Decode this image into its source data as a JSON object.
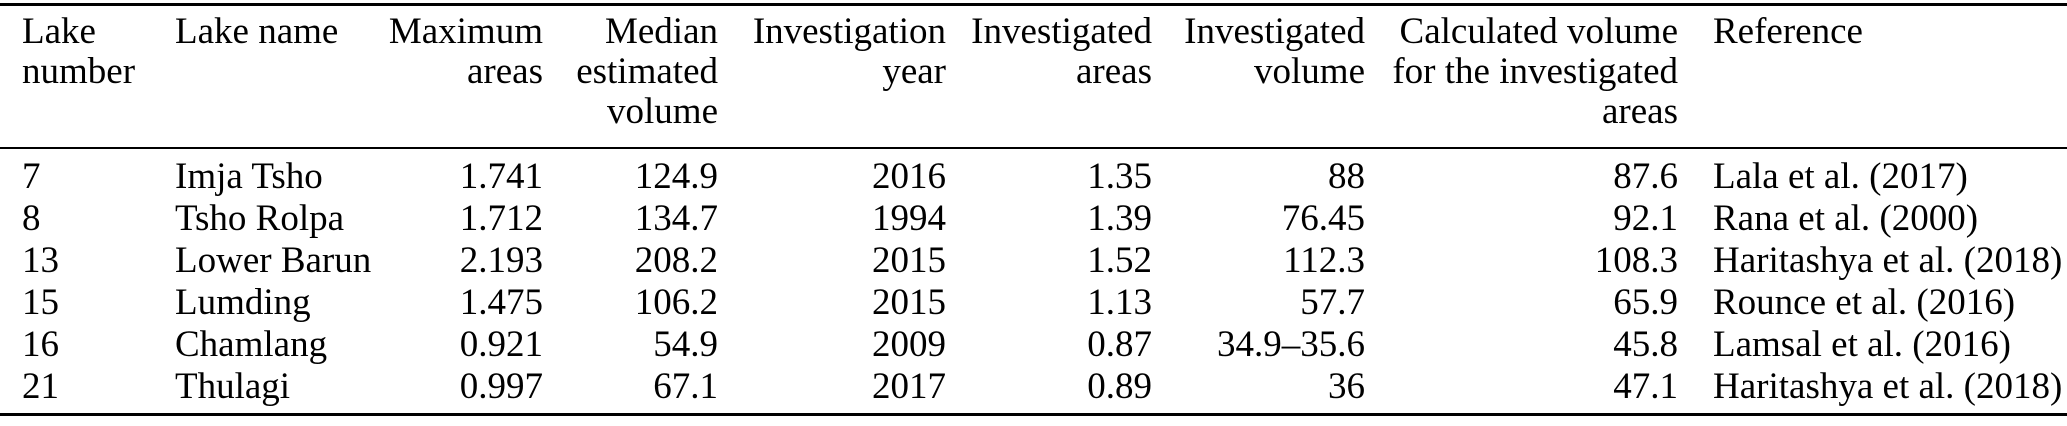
{
  "colors": {
    "text": "#000000",
    "rule": "#000000",
    "background": "#ffffff"
  },
  "table": {
    "columns": [
      {
        "label": "Lake\nnumber",
        "align": "left"
      },
      {
        "label": "Lake name",
        "align": "left"
      },
      {
        "label": "Maximum\nareas",
        "align": "right"
      },
      {
        "label": "Median\nestimated\nvolume",
        "align": "right"
      },
      {
        "label": "Investigation\nyear",
        "align": "right"
      },
      {
        "label": "Investigated\nareas",
        "align": "right"
      },
      {
        "label": "Investigated\nvolume",
        "align": "right"
      },
      {
        "label": "Calculated volume\nfor the investigated\nareas",
        "align": "right"
      },
      {
        "label": "Reference",
        "align": "left"
      }
    ],
    "rows": [
      [
        "7",
        "Imja Tsho",
        "1.741",
        "124.9",
        "2016",
        "1.35",
        "88",
        "87.6",
        "Lala et al. (2017)"
      ],
      [
        "8",
        "Tsho Rolpa",
        "1.712",
        "134.7",
        "1994",
        "1.39",
        "76.45",
        "92.1",
        "Rana et al. (2000)"
      ],
      [
        "13",
        "Lower Barun",
        "2.193",
        "208.2",
        "2015",
        "1.52",
        "112.3",
        "108.3",
        "Haritashya et al. (2018)"
      ],
      [
        "15",
        "Lumding",
        "1.475",
        "106.2",
        "2015",
        "1.13",
        "57.7",
        "65.9",
        "Rounce et al. (2016)"
      ],
      [
        "16",
        "Chamlang",
        "0.921",
        "54.9",
        "2009",
        "0.87",
        "34.9–35.6",
        "45.8",
        "Lamsal et al. (2016)"
      ],
      [
        "21",
        "Thulagi",
        "0.997",
        "67.1",
        "2017",
        "0.89",
        "36",
        "47.1",
        "Haritashya et al. (2018)"
      ]
    ]
  }
}
